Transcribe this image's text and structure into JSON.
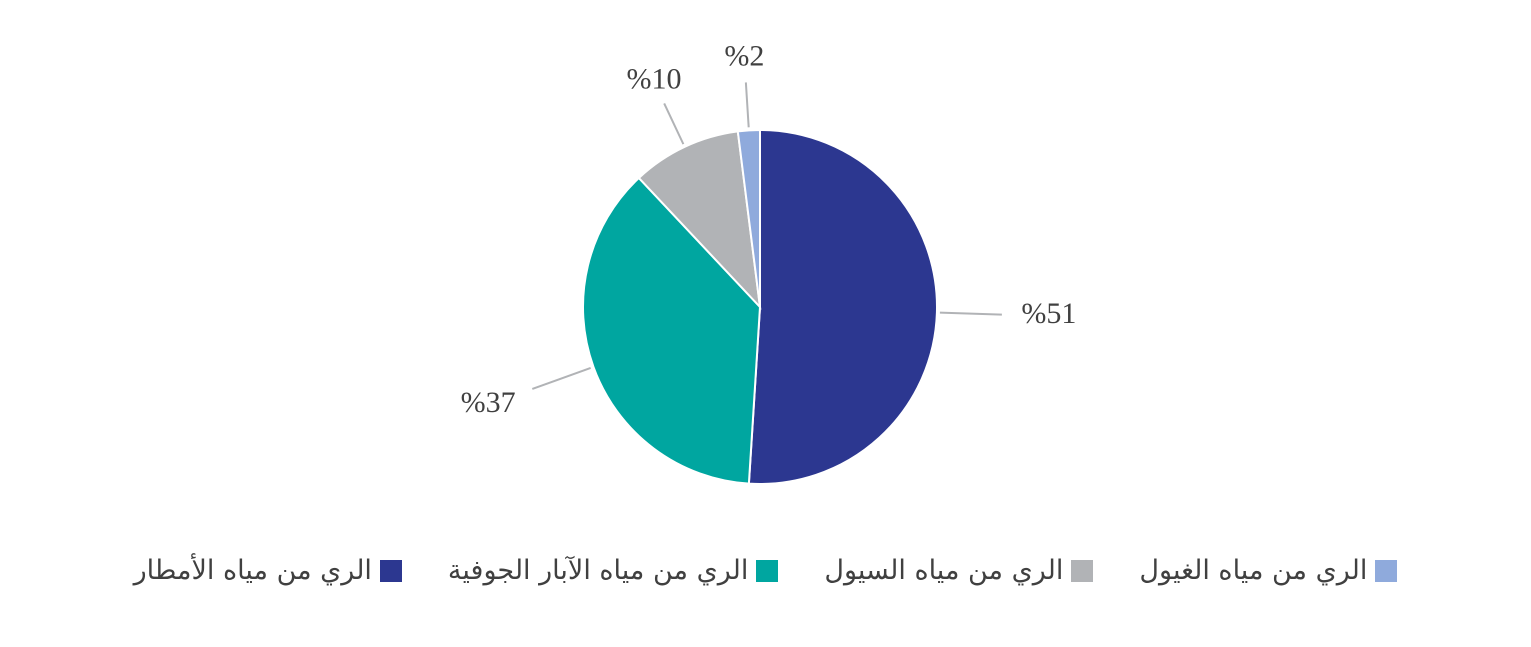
{
  "chart_data": {
    "type": "pie",
    "categories": [
      "الري من مياه الأمطار",
      "الري من مياه الآبار الجوفية",
      "الري من مياه السيول",
      "الري من مياه الغيول"
    ],
    "values": [
      51,
      37,
      10,
      2
    ],
    "value_labels": [
      "%51",
      "%37",
      "%10",
      "%2"
    ],
    "colors": [
      "#2c3790",
      "#00a6a0",
      "#b1b3b6",
      "#8faadc"
    ]
  }
}
